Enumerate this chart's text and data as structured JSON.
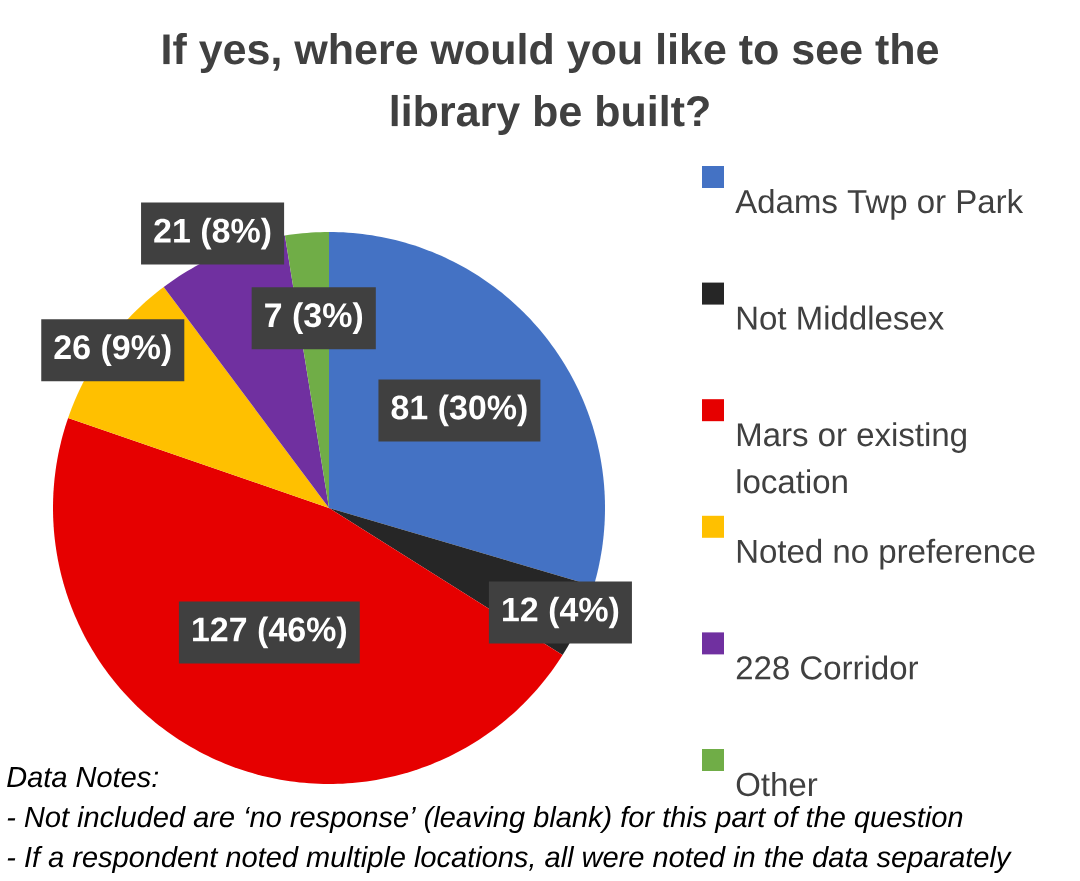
{
  "chart_data": {
    "type": "pie",
    "title": "If yes, where would you like to see the library be built?",
    "categories": [
      "Adams Twp or Park",
      "Not Middlesex",
      "Mars or existing location",
      "Noted no preference",
      "228 Corridor",
      "Other"
    ],
    "values": [
      81,
      12,
      127,
      26,
      21,
      7
    ],
    "colors": [
      "#4472c4",
      "#262626",
      "#e60000",
      "#ffc000",
      "#7030a0",
      "#70ad47"
    ],
    "value_labels": [
      "81 (30%)",
      "12 (4%)",
      "127 (46%)",
      "26 (9%)",
      "21 (8%)",
      "7 (3%)"
    ],
    "legend": "right",
    "annotations": [
      "Data Notes:",
      "- Not included are ‘no response’ (leaving blank) for this part of the question",
      "- If a respondent noted multiple locations, all were noted in the data separately"
    ]
  }
}
